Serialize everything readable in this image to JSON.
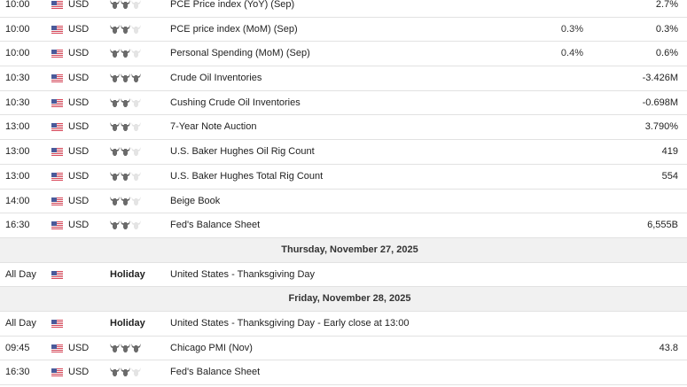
{
  "colors": {
    "bull_on": "#6b6b6b",
    "bull_off": "#e4e4e4",
    "day_header_bg": "#f1f1f1",
    "divider": "#e2e2e2"
  },
  "rows": [
    {
      "type": "event",
      "time": "10:00",
      "flag": "us-flag-icon",
      "currency": "USD",
      "importance": 2,
      "event": "PCE Price index (YoY) (Sep)",
      "forecast": "",
      "previous": "2.7%"
    },
    {
      "type": "event",
      "time": "10:00",
      "flag": "us-flag-icon",
      "currency": "USD",
      "importance": 2,
      "event": "PCE price index (MoM) (Sep)",
      "forecast": "0.3%",
      "previous": "0.3%"
    },
    {
      "type": "event",
      "time": "10:00",
      "flag": "us-flag-icon",
      "currency": "USD",
      "importance": 2,
      "event": "Personal Spending (MoM) (Sep)",
      "forecast": "0.4%",
      "previous": "0.6%"
    },
    {
      "type": "event",
      "time": "10:30",
      "flag": "us-flag-icon",
      "currency": "USD",
      "importance": 3,
      "event": "Crude Oil Inventories",
      "forecast": "",
      "previous": "-3.426M"
    },
    {
      "type": "event",
      "time": "10:30",
      "flag": "us-flag-icon",
      "currency": "USD",
      "importance": 2,
      "event": "Cushing Crude Oil Inventories",
      "forecast": "",
      "previous": "-0.698M"
    },
    {
      "type": "event",
      "time": "13:00",
      "flag": "us-flag-icon",
      "currency": "USD",
      "importance": 2,
      "event": "7-Year Note Auction",
      "forecast": "",
      "previous": "3.790%"
    },
    {
      "type": "event",
      "time": "13:00",
      "flag": "us-flag-icon",
      "currency": "USD",
      "importance": 2,
      "event": "U.S. Baker Hughes Oil Rig Count",
      "forecast": "",
      "previous": "419"
    },
    {
      "type": "event",
      "time": "13:00",
      "flag": "us-flag-icon",
      "currency": "USD",
      "importance": 2,
      "event": "U.S. Baker Hughes Total Rig Count",
      "forecast": "",
      "previous": "554"
    },
    {
      "type": "event",
      "time": "14:00",
      "flag": "us-flag-icon",
      "currency": "USD",
      "importance": 2,
      "event": "Beige Book",
      "forecast": "",
      "previous": ""
    },
    {
      "type": "event",
      "time": "16:30",
      "flag": "us-flag-icon",
      "currency": "USD",
      "importance": 2,
      "event": "Fed's Balance Sheet",
      "forecast": "",
      "previous": "6,555B"
    },
    {
      "type": "day",
      "label": "Thursday, November 27, 2025"
    },
    {
      "type": "holiday",
      "time": "All Day",
      "flag": "us-flag-icon",
      "holiday_label": "Holiday",
      "event": "United States - Thanksgiving Day"
    },
    {
      "type": "day",
      "label": "Friday, November 28, 2025"
    },
    {
      "type": "holiday",
      "time": "All Day",
      "flag": "us-flag-icon",
      "holiday_label": "Holiday",
      "event": "United States - Thanksgiving Day - Early close at 13:00"
    },
    {
      "type": "event",
      "time": "09:45",
      "flag": "us-flag-icon",
      "currency": "USD",
      "importance": 3,
      "event": "Chicago PMI (Nov)",
      "forecast": "",
      "previous": "43.8"
    },
    {
      "type": "event",
      "time": "16:30",
      "flag": "us-flag-icon",
      "currency": "USD",
      "importance": 2,
      "event": "Fed's Balance Sheet",
      "forecast": "",
      "previous": ""
    }
  ]
}
